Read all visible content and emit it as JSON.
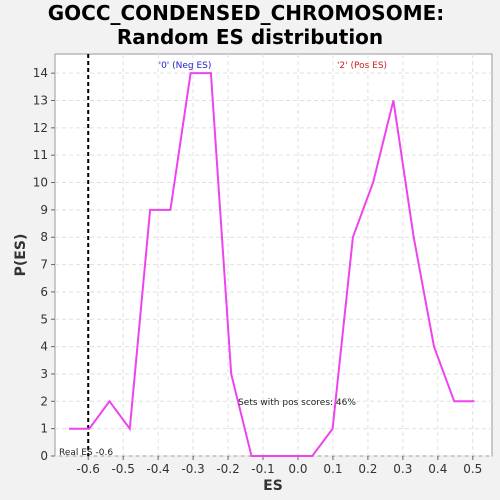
{
  "chart_data": {
    "type": "line",
    "title_lines": [
      "GOCC_CONDENSED_CHROMOSOME:",
      "Random ES distribution"
    ],
    "xlabel": "ES",
    "ylabel": "P(ES)",
    "xlim": [
      -0.695,
      0.555
    ],
    "ylim": [
      0,
      14.7
    ],
    "xticks": [
      -0.6,
      -0.5,
      -0.4,
      -0.3,
      -0.2,
      -0.1,
      0.0,
      0.1,
      0.2,
      0.3,
      0.4,
      0.5
    ],
    "xtick_labels": [
      "-0.6",
      "-0.5",
      "-0.4",
      "-0.3",
      "-0.2",
      "-0.1",
      "0.0",
      "0.1",
      "0.2",
      "0.3",
      "0.4",
      "0.5"
    ],
    "yticks": [
      0,
      1,
      2,
      3,
      4,
      5,
      6,
      7,
      8,
      9,
      10,
      11,
      12,
      13,
      14
    ],
    "ytick_labels": [
      "0",
      "1",
      "2",
      "3",
      "4",
      "5",
      "6",
      "7",
      "8",
      "9",
      "10",
      "11",
      "12",
      "13",
      "14"
    ],
    "grid": true,
    "series": [
      {
        "color": "#ee44ee",
        "x": [
          -0.655,
          -0.597,
          -0.539,
          -0.481,
          -0.423,
          -0.365,
          -0.307,
          -0.249,
          -0.191,
          -0.133,
          -0.075,
          -0.017,
          0.041,
          0.099,
          0.157,
          0.215,
          0.273,
          0.331,
          0.389,
          0.447,
          0.505
        ],
        "y": [
          1,
          1,
          2,
          1,
          9,
          9,
          14,
          14,
          3,
          0,
          0,
          0,
          0,
          1,
          8,
          10,
          13,
          8,
          4,
          2,
          2
        ]
      }
    ],
    "real_es": -0.6,
    "annotations": {
      "neg_label": "'0' (Neg ES)",
      "pos_label": "'2' (Pos ES)",
      "pos_scores": "Sets with pos scores: 46%",
      "real_es_label": "Real ES -0.6"
    },
    "colors": {
      "neg": "#2222cc",
      "pos": "#cc2222",
      "line": "#ee44ee",
      "real_es": "#000000"
    }
  }
}
